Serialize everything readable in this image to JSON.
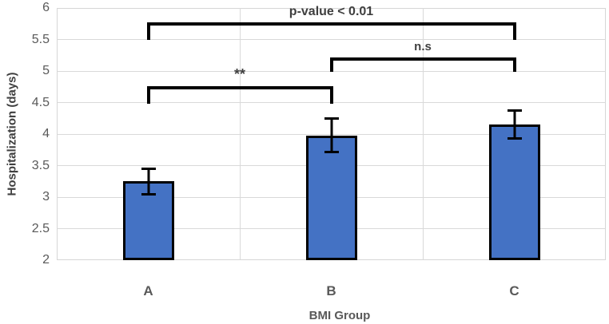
{
  "chart_data": {
    "type": "bar",
    "title": "",
    "categories": [
      "A",
      "B",
      "C"
    ],
    "series": [
      {
        "name": "Hospitalization (days)",
        "values": [
          3.25,
          3.98,
          4.15
        ],
        "errors": [
          0.21,
          0.27,
          0.23
        ]
      }
    ],
    "xlabel": "BMI Group",
    "ylabel": "Hospitalization (days)",
    "ylim": [
      2,
      6
    ],
    "ytick_step": 0.5,
    "yticks": [
      "6",
      "5.5",
      "5",
      "4.5",
      "4",
      "3.5",
      "3",
      "2.5",
      "2"
    ],
    "grid": "horizontal gridlines every 0.5; vertical gridlines at category boundaries",
    "legend_position": "none",
    "bar_fill_color": "#4472C4",
    "bar_border_color": "#000000",
    "gridline_color": "#d9d9d9",
    "annotations": [
      {
        "label": "p-value < 0.01",
        "from": "A",
        "to": "C",
        "level": 5.77,
        "leg_drop": 0.28,
        "font_size": 16
      },
      {
        "label": "**",
        "from": "A",
        "to": "B",
        "level": 4.76,
        "leg_drop": 0.28,
        "font_size": 18
      },
      {
        "label": "n.s",
        "from": "B",
        "to": "C",
        "level": 5.22,
        "leg_drop": 0.23,
        "font_size": 15
      }
    ]
  }
}
